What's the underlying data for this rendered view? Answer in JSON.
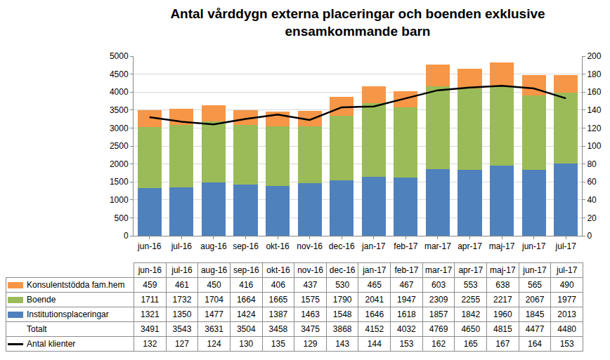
{
  "chart_data": {
    "type": "bar",
    "stacked": true,
    "title": "Antal vårddygn externa placeringar och boenden exklusive\nensamkommande barn",
    "categories": [
      "jun-16",
      "jul-16",
      "aug-16",
      "sep-16",
      "okt-16",
      "nov-16",
      "dec-16",
      "jan-17",
      "feb-17",
      "mar-17",
      "apr-17",
      "maj-17",
      "jun-17",
      "jul-17"
    ],
    "series": [
      {
        "name": "Konsulentstödda fam.hem",
        "type": "bar",
        "color": "#F79646",
        "values": [
          459,
          461,
          450,
          416,
          406,
          437,
          530,
          465,
          467,
          603,
          553,
          638,
          565,
          490
        ]
      },
      {
        "name": "Boende",
        "type": "bar",
        "color": "#9BBB59",
        "values": [
          1711,
          1732,
          1704,
          1664,
          1665,
          1575,
          1790,
          2041,
          1947,
          2309,
          2255,
          2217,
          2067,
          1977
        ]
      },
      {
        "name": "Institutionsplaceringar",
        "type": "bar",
        "color": "#4F81BD",
        "values": [
          1321,
          1350,
          1477,
          1424,
          1387,
          1463,
          1548,
          1646,
          1618,
          1857,
          1842,
          1960,
          1845,
          2013
        ]
      },
      {
        "name": "Antal klienter",
        "type": "line",
        "axis": "y2",
        "color": "#000000",
        "values": [
          132,
          127,
          124,
          130,
          135,
          129,
          143,
          144,
          153,
          162,
          165,
          167,
          164,
          153
        ]
      }
    ],
    "totals": {
      "name": "Totalt",
      "values": [
        3491,
        3543,
        3631,
        3504,
        3458,
        3475,
        3868,
        4152,
        4032,
        4769,
        4650,
        4815,
        4477,
        4480
      ]
    },
    "ylim": [
      0,
      5000
    ],
    "yticks": [
      0,
      500,
      1000,
      1500,
      2000,
      2500,
      3000,
      3500,
      4000,
      4500,
      5000
    ],
    "y2lim": [
      0,
      200
    ],
    "y2ticks": [
      0,
      20,
      40,
      60,
      80,
      100,
      120,
      140,
      160,
      180,
      200
    ],
    "grid": true
  }
}
